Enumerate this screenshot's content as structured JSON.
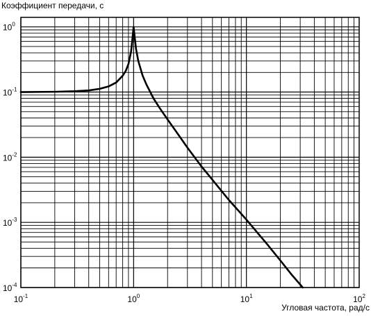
{
  "chart_data": {
    "type": "line",
    "title": "",
    "ylabel": "Коэффициент передачи, с",
    "xlabel": "Угловая частота, рад/с",
    "x_scale": "log",
    "y_scale": "log",
    "xlim": [
      0.1,
      100
    ],
    "ylim": [
      0.0001,
      1.4
    ],
    "grid": true,
    "legend": "none",
    "x_ticks": [
      {
        "value": 0.1,
        "base": "10",
        "exp": "-1"
      },
      {
        "value": 1,
        "base": "10",
        "exp": "0"
      },
      {
        "value": 10,
        "base": "10",
        "exp": "1"
      },
      {
        "value": 100,
        "base": "10",
        "exp": "2"
      }
    ],
    "y_ticks": [
      {
        "value": 0.0001,
        "base": "10",
        "exp": "-4"
      },
      {
        "value": 0.001,
        "base": "10",
        "exp": "-3"
      },
      {
        "value": 0.01,
        "base": "10",
        "exp": "-2"
      },
      {
        "value": 0.1,
        "base": "10",
        "exp": "-1"
      },
      {
        "value": 1,
        "base": "10",
        "exp": "0"
      }
    ],
    "series": [
      {
        "x": [
          0.1,
          0.2,
          0.3,
          0.4,
          0.5,
          0.6,
          0.7,
          0.8,
          0.85,
          0.9,
          0.95,
          1.0,
          1.05,
          1.1,
          1.2,
          1.3,
          1.5,
          1.7,
          2.0,
          2.5,
          3.0,
          4.0,
          5.0,
          7.0,
          10.0,
          15.0,
          20.0,
          25.0,
          31.6
        ],
        "y": [
          0.1,
          0.101,
          0.103,
          0.106,
          0.112,
          0.122,
          0.14,
          0.178,
          0.21,
          0.27,
          0.42,
          1.0,
          0.46,
          0.3,
          0.18,
          0.13,
          0.08,
          0.057,
          0.038,
          0.022,
          0.014,
          0.0072,
          0.0045,
          0.0022,
          0.0011,
          0.00048,
          0.00026,
          0.00016,
          0.0001
        ]
      }
    ],
    "colors": {
      "line": "#000000",
      "grid": "#000000",
      "background": "#ffffff"
    }
  }
}
